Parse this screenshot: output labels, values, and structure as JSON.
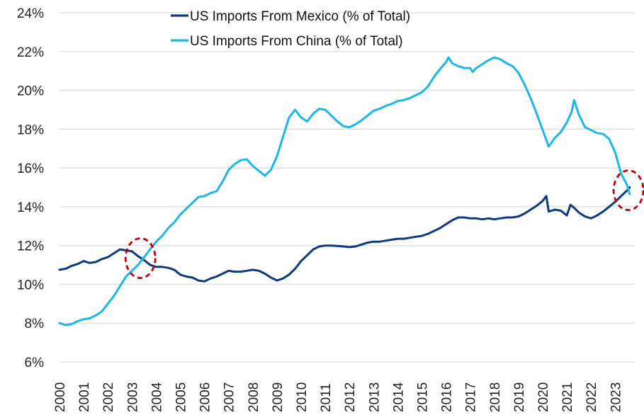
{
  "chart_data": {
    "type": "line",
    "title": "",
    "xlabel": "",
    "ylabel": "",
    "ylim": [
      6,
      24
    ],
    "xlim": [
      2000,
      2023.8
    ],
    "y_ticks": [
      "6%",
      "8%",
      "10%",
      "12%",
      "14%",
      "16%",
      "18%",
      "20%",
      "22%",
      "24%"
    ],
    "y_tick_values": [
      6,
      8,
      10,
      12,
      14,
      16,
      18,
      20,
      22,
      24
    ],
    "x_ticks": [
      "2000",
      "2001",
      "2002",
      "2003",
      "2004",
      "2005",
      "2006",
      "2007",
      "2008",
      "2009",
      "2010",
      "2011",
      "2012",
      "2013",
      "2014",
      "2015",
      "2016",
      "2017",
      "2018",
      "2019",
      "2020",
      "2021",
      "2022",
      "2023"
    ],
    "grid": "horizontal",
    "legend_position": "top-center",
    "series": [
      {
        "name": "US Imports From Mexico (% of Total)",
        "color": "#0b3a7e",
        "x": [
          2000.0,
          2000.25,
          2000.5,
          2000.75,
          2001.0,
          2001.25,
          2001.5,
          2001.75,
          2002.0,
          2002.25,
          2002.5,
          2002.75,
          2003.0,
          2003.25,
          2003.5,
          2003.75,
          2004.0,
          2004.25,
          2004.5,
          2004.75,
          2005.0,
          2005.25,
          2005.5,
          2005.75,
          2006.0,
          2006.25,
          2006.5,
          2006.75,
          2007.0,
          2007.25,
          2007.5,
          2007.75,
          2008.0,
          2008.25,
          2008.5,
          2008.75,
          2009.0,
          2009.25,
          2009.5,
          2009.75,
          2010.0,
          2010.25,
          2010.5,
          2010.75,
          2011.0,
          2011.25,
          2011.5,
          2011.75,
          2012.0,
          2012.25,
          2012.5,
          2012.75,
          2013.0,
          2013.25,
          2013.5,
          2013.75,
          2014.0,
          2014.25,
          2014.5,
          2014.75,
          2015.0,
          2015.25,
          2015.5,
          2015.75,
          2016.0,
          2016.25,
          2016.5,
          2016.75,
          2017.0,
          2017.25,
          2017.5,
          2017.75,
          2018.0,
          2018.25,
          2018.5,
          2018.75,
          2019.0,
          2019.25,
          2019.5,
          2019.75,
          2020.0,
          2020.15,
          2020.25,
          2020.5,
          2020.75,
          2021.0,
          2021.15,
          2021.3,
          2021.5,
          2021.75,
          2022.0,
          2022.25,
          2022.5,
          2022.75,
          2023.0,
          2023.25,
          2023.5,
          2023.6
        ],
        "values": [
          10.75,
          10.8,
          10.95,
          11.05,
          11.2,
          11.1,
          11.15,
          11.3,
          11.4,
          11.6,
          11.8,
          11.75,
          11.7,
          11.45,
          11.25,
          11.0,
          10.9,
          10.9,
          10.85,
          10.75,
          10.5,
          10.4,
          10.35,
          10.2,
          10.15,
          10.3,
          10.4,
          10.55,
          10.7,
          10.65,
          10.65,
          10.7,
          10.75,
          10.7,
          10.55,
          10.35,
          10.2,
          10.3,
          10.5,
          10.8,
          11.2,
          11.5,
          11.8,
          11.95,
          12.0,
          12.0,
          11.98,
          11.95,
          11.92,
          11.95,
          12.05,
          12.15,
          12.2,
          12.2,
          12.25,
          12.3,
          12.35,
          12.35,
          12.4,
          12.45,
          12.5,
          12.6,
          12.75,
          12.9,
          13.1,
          13.3,
          13.45,
          13.45,
          13.4,
          13.4,
          13.35,
          13.4,
          13.35,
          13.4,
          13.45,
          13.45,
          13.5,
          13.65,
          13.85,
          14.05,
          14.3,
          14.55,
          13.75,
          13.85,
          13.8,
          13.55,
          14.1,
          13.95,
          13.7,
          13.5,
          13.4,
          13.55,
          13.75,
          14.0,
          14.25,
          14.55,
          14.85,
          15.0
        ]
      },
      {
        "name": "US Imports From China (% of Total)",
        "color": "#1ab8e8",
        "x": [
          2000.0,
          2000.25,
          2000.5,
          2000.75,
          2001.0,
          2001.25,
          2001.5,
          2001.75,
          2002.0,
          2002.25,
          2002.5,
          2002.75,
          2003.0,
          2003.25,
          2003.5,
          2003.75,
          2004.0,
          2004.25,
          2004.5,
          2004.75,
          2005.0,
          2005.25,
          2005.5,
          2005.75,
          2006.0,
          2006.25,
          2006.5,
          2006.75,
          2007.0,
          2007.25,
          2007.5,
          2007.75,
          2008.0,
          2008.25,
          2008.5,
          2008.75,
          2009.0,
          2009.25,
          2009.5,
          2009.75,
          2010.0,
          2010.25,
          2010.5,
          2010.75,
          2011.0,
          2011.25,
          2011.5,
          2011.75,
          2012.0,
          2012.25,
          2012.5,
          2012.75,
          2013.0,
          2013.25,
          2013.5,
          2013.75,
          2014.0,
          2014.25,
          2014.5,
          2014.75,
          2015.0,
          2015.25,
          2015.5,
          2015.75,
          2016.0,
          2016.1,
          2016.25,
          2016.5,
          2016.75,
          2017.0,
          2017.1,
          2017.25,
          2017.5,
          2017.75,
          2018.0,
          2018.25,
          2018.5,
          2018.75,
          2019.0,
          2019.25,
          2019.5,
          2019.75,
          2020.0,
          2020.25,
          2020.5,
          2020.75,
          2021.0,
          2021.2,
          2021.3,
          2021.5,
          2021.75,
          2022.0,
          2022.25,
          2022.5,
          2022.75,
          2023.0,
          2023.25,
          2023.5,
          2023.6
        ],
        "values": [
          8.0,
          7.9,
          7.95,
          8.1,
          8.2,
          8.25,
          8.4,
          8.6,
          9.0,
          9.4,
          9.9,
          10.4,
          10.7,
          11.0,
          11.4,
          11.8,
          12.2,
          12.5,
          12.9,
          13.2,
          13.6,
          13.9,
          14.2,
          14.5,
          14.55,
          14.7,
          14.8,
          15.3,
          15.9,
          16.2,
          16.4,
          16.45,
          16.1,
          15.85,
          15.6,
          15.9,
          16.6,
          17.6,
          18.6,
          19.0,
          18.6,
          18.4,
          18.8,
          19.05,
          19.0,
          18.7,
          18.4,
          18.15,
          18.1,
          18.25,
          18.45,
          18.7,
          18.95,
          19.05,
          19.2,
          19.3,
          19.45,
          19.5,
          19.6,
          19.75,
          19.9,
          20.2,
          20.7,
          21.1,
          21.45,
          21.7,
          21.4,
          21.25,
          21.15,
          21.15,
          20.95,
          21.15,
          21.35,
          21.55,
          21.7,
          21.6,
          21.4,
          21.25,
          20.9,
          20.3,
          19.6,
          18.8,
          17.95,
          17.1,
          17.55,
          17.85,
          18.35,
          18.9,
          19.5,
          18.75,
          18.1,
          17.95,
          17.8,
          17.75,
          17.5,
          16.8,
          15.7,
          15.1,
          14.65
        ]
      }
    ],
    "annotations": [
      {
        "type": "dashed-ellipse",
        "color": "#c00000",
        "label": "",
        "around": {
          "x": 2003.35,
          "y": 11.35
        }
      },
      {
        "type": "dashed-ellipse",
        "color": "#c00000",
        "label": "",
        "around": {
          "x": 2023.55,
          "y": 14.85
        }
      }
    ]
  }
}
